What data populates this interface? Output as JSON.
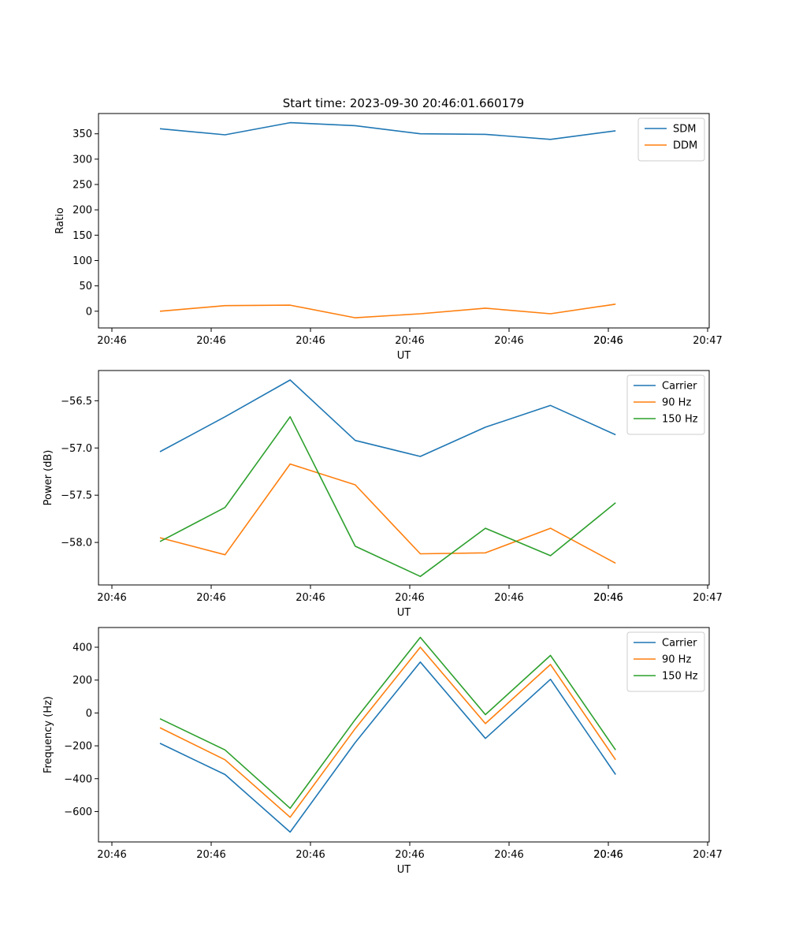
{
  "figure_title": "Start time: 2023-09-30 20:46:01.660179",
  "chart_data": [
    {
      "type": "line",
      "title": "Start time: 2023-09-30 20:46:01.660179",
      "xlabel": "UT",
      "ylabel": "Ratio",
      "x_ticks": [
        "20:46",
        "20:46",
        "20:46",
        "20:46",
        "20:46",
        "20:46",
        "20:46",
        "20:47"
      ],
      "x": [
        1,
        2,
        3,
        4,
        5,
        6,
        7,
        8
      ],
      "xlim": [
        0.8,
        9.2
      ],
      "y_ticks": [
        0,
        50,
        100,
        150,
        200,
        250,
        300,
        350
      ],
      "ylim": [
        -33,
        390
      ],
      "legend_position": "upper right",
      "series": [
        {
          "name": "SDM",
          "color": "#1f77b4",
          "values": [
            360,
            348,
            372,
            366,
            350,
            349,
            339,
            356
          ]
        },
        {
          "name": "DDM",
          "color": "#ff7f0e",
          "values": [
            0,
            11,
            12,
            -13,
            -5,
            6,
            -5,
            14
          ]
        }
      ]
    },
    {
      "type": "line",
      "title": "",
      "xlabel": "UT",
      "ylabel": "Power (dB)",
      "x_ticks": [
        "20:46",
        "20:46",
        "20:46",
        "20:46",
        "20:46",
        "20:46",
        "20:46",
        "20:47"
      ],
      "x": [
        1,
        2,
        3,
        4,
        5,
        6,
        7,
        8
      ],
      "xlim": [
        0.8,
        9.2
      ],
      "y_ticks": [
        -58.0,
        -57.5,
        -57.0,
        -56.5
      ],
      "y_tick_labels": [
        "−58.0",
        "−57.5",
        "−57.0",
        "−56.5"
      ],
      "ylim": [
        -58.45,
        -56.18
      ],
      "legend_position": "upper right",
      "series": [
        {
          "name": "Carrier",
          "color": "#1f77b4",
          "values": [
            -57.04,
            -56.67,
            -56.28,
            -56.92,
            -57.09,
            -56.78,
            -56.55,
            -56.86
          ]
        },
        {
          "name": "90 Hz",
          "color": "#ff7f0e",
          "values": [
            -57.95,
            -58.13,
            -57.17,
            -57.39,
            -58.12,
            -58.11,
            -57.85,
            -58.22
          ]
        },
        {
          "name": "150 Hz",
          "color": "#2ca02c",
          "values": [
            -57.99,
            -57.63,
            -56.67,
            -58.04,
            -58.36,
            -57.85,
            -58.14,
            -57.58
          ]
        }
      ]
    },
    {
      "type": "line",
      "title": "",
      "xlabel": "UT",
      "ylabel": "Frequency (Hz)",
      "x_ticks": [
        "20:46",
        "20:46",
        "20:46",
        "20:46",
        "20:46",
        "20:46",
        "20:46",
        "20:47"
      ],
      "x": [
        1,
        2,
        3,
        4,
        5,
        6,
        7,
        8
      ],
      "xlim": [
        0.8,
        9.2
      ],
      "y_ticks": [
        -600,
        -400,
        -200,
        0,
        200,
        400
      ],
      "y_tick_labels": [
        "−600",
        "−400",
        "−200",
        "0",
        "200",
        "400"
      ],
      "ylim": [
        -785,
        520
      ],
      "legend_position": "upper right",
      "series": [
        {
          "name": "Carrier",
          "color": "#1f77b4",
          "values": [
            -185,
            -375,
            -725,
            -180,
            310,
            -155,
            205,
            -375
          ]
        },
        {
          "name": "90 Hz",
          "color": "#ff7f0e",
          "values": [
            -90,
            -285,
            -635,
            -95,
            400,
            -65,
            295,
            -285
          ]
        },
        {
          "name": "150 Hz",
          "color": "#2ca02c",
          "values": [
            -35,
            -225,
            -580,
            -40,
            460,
            -10,
            350,
            -225
          ]
        }
      ]
    }
  ]
}
